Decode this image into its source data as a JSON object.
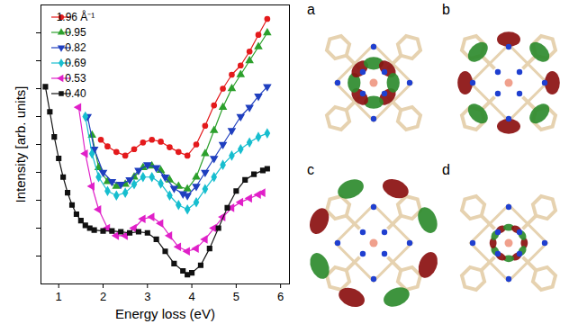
{
  "chart_data": {
    "type": "line",
    "x_label": "Energy loss (eV)",
    "y_label": "Intensity [arb. units]",
    "xlim": [
      0.6,
      6.2
    ],
    "xticks": [
      1,
      2,
      3,
      4,
      5,
      6
    ],
    "ylim": [
      0,
      10
    ],
    "yticks": [
      1,
      2,
      3,
      4,
      5,
      6,
      7,
      8,
      9
    ],
    "tick_labels": "x",
    "legend": "upper left",
    "series": [
      {
        "name": "1.96 Å⁻¹",
        "color": "#e41a1c",
        "marker": "circle",
        "x": [
          1.95,
          2.1,
          2.3,
          2.5,
          2.7,
          2.9,
          3.1,
          3.3,
          3.5,
          3.7,
          3.9,
          4.1,
          4.3,
          4.5,
          4.7,
          4.9,
          5.1,
          5.3,
          5.5,
          5.7
        ],
        "values": [
          5.17,
          4.93,
          4.73,
          4.6,
          4.83,
          5.07,
          5.17,
          5.1,
          4.9,
          4.73,
          4.6,
          5.0,
          5.67,
          6.4,
          7.0,
          7.5,
          7.83,
          8.33,
          8.93,
          9.5
        ]
      },
      {
        "name": "0.95",
        "color": "#2ca02c",
        "marker": "triangle",
        "x": [
          1.75,
          1.9,
          2.1,
          2.3,
          2.5,
          2.7,
          2.9,
          3.1,
          3.3,
          3.5,
          3.7,
          3.9,
          4.1,
          4.3,
          4.5,
          4.7,
          4.9,
          5.1,
          5.3,
          5.5,
          5.7
        ],
        "values": [
          5.33,
          4.17,
          3.67,
          3.5,
          3.57,
          3.83,
          4.17,
          4.23,
          4.07,
          3.73,
          3.5,
          3.4,
          3.83,
          4.67,
          5.5,
          6.33,
          7.0,
          7.5,
          8.0,
          8.5,
          9.0
        ]
      },
      {
        "name": "0.82",
        "color": "#1f3fbf",
        "marker": "triangle-down",
        "x": [
          1.65,
          1.8,
          2.0,
          2.2,
          2.4,
          2.6,
          2.8,
          3.0,
          3.2,
          3.4,
          3.6,
          3.8,
          3.9,
          4.1,
          4.3,
          4.5,
          4.7,
          4.9,
          5.1,
          5.3,
          5.5,
          5.7
        ],
        "values": [
          6.0,
          4.83,
          4.0,
          3.67,
          3.57,
          3.73,
          4.07,
          4.27,
          4.17,
          3.83,
          3.43,
          3.23,
          3.17,
          3.5,
          4.0,
          4.5,
          5.0,
          5.5,
          6.0,
          6.33,
          6.73,
          7.07
        ]
      },
      {
        "name": "0.69",
        "color": "#17becf",
        "marker": "diamond",
        "x": [
          1.6,
          1.75,
          1.9,
          2.1,
          2.3,
          2.5,
          2.7,
          2.9,
          3.1,
          3.3,
          3.5,
          3.7,
          3.9,
          4.1,
          4.3,
          4.5,
          4.7,
          4.9,
          5.1,
          5.3,
          5.5,
          5.7
        ],
        "values": [
          6.0,
          4.67,
          3.83,
          3.33,
          3.17,
          3.27,
          3.57,
          3.83,
          3.83,
          3.6,
          3.17,
          2.83,
          2.67,
          2.93,
          3.4,
          3.83,
          4.27,
          4.6,
          4.83,
          5.07,
          5.27,
          5.4
        ]
      },
      {
        "name": "0.53",
        "color": "#e020c8",
        "marker": "triangle-left",
        "x": [
          1.45,
          1.6,
          1.75,
          1.9,
          2.1,
          2.3,
          2.5,
          2.7,
          2.9,
          3.1,
          3.3,
          3.5,
          3.7,
          3.9,
          4.1,
          4.3,
          4.5,
          4.7,
          4.9,
          5.1,
          5.3,
          5.5,
          5.6
        ],
        "values": [
          6.33,
          4.67,
          3.5,
          2.67,
          2.0,
          1.73,
          1.73,
          2.0,
          2.33,
          2.4,
          2.17,
          1.73,
          1.33,
          1.17,
          1.27,
          1.6,
          2.0,
          2.4,
          2.73,
          2.93,
          3.07,
          3.2,
          3.27
        ]
      },
      {
        "name": "0.40",
        "color": "#111111",
        "marker": "square",
        "x": [
          0.7,
          0.8,
          0.9,
          1.0,
          1.1,
          1.2,
          1.3,
          1.4,
          1.5,
          1.6,
          1.7,
          1.8,
          2.0,
          2.2,
          2.4,
          2.6,
          2.8,
          3.0,
          3.2,
          3.4,
          3.6,
          3.8,
          3.9,
          4.0,
          4.2,
          4.4,
          4.6,
          4.8,
          5.0,
          5.2,
          5.4,
          5.6,
          5.7
        ],
        "values": [
          7.07,
          6.17,
          5.27,
          4.5,
          3.83,
          3.27,
          2.83,
          2.5,
          2.27,
          2.1,
          2.0,
          1.93,
          1.9,
          1.9,
          1.87,
          1.83,
          1.87,
          1.83,
          1.6,
          1.17,
          0.73,
          0.47,
          0.33,
          0.4,
          0.67,
          1.27,
          2.0,
          2.73,
          3.33,
          3.73,
          3.93,
          4.07,
          4.13
        ]
      }
    ]
  },
  "images": {
    "panels": [
      "a",
      "b",
      "c",
      "d"
    ]
  }
}
